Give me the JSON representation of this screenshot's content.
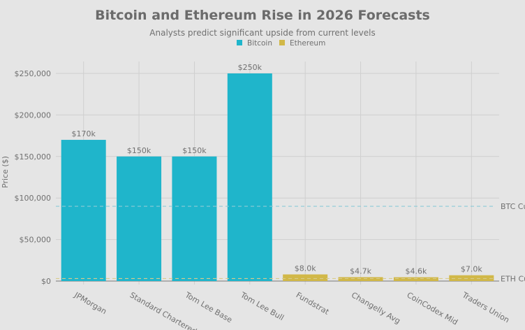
{
  "chart_data": {
    "type": "bar",
    "title": "Bitcoin and Ethereum Rise in 2026 Forecasts",
    "subtitle": "Analysts predict significant upside from current levels",
    "ylabel": "Price ($)",
    "xlabel": "",
    "ylim": [
      0,
      262000
    ],
    "yticks": [
      0,
      50000,
      100000,
      150000,
      200000,
      250000
    ],
    "ytick_labels": [
      "$0",
      "$50,000",
      "$100,000",
      "$150,000",
      "$200,000",
      "$250,000"
    ],
    "grid": true,
    "legend_position": "top-center",
    "categories": [
      "JPMorgan",
      "Standard Chartered",
      "Tom Lee Base",
      "Tom Lee Bull",
      "Fundstrat",
      "Changelly Avg",
      "CoinCodex Mid",
      "Traders Union"
    ],
    "series": [
      {
        "name": "Bitcoin",
        "color": "#1fb5cb",
        "values": [
          170000,
          150000,
          150000,
          250000,
          null,
          null,
          null,
          null
        ]
      },
      {
        "name": "Ethereum",
        "color": "#d1b848",
        "values": [
          null,
          null,
          null,
          null,
          8000,
          4700,
          4600,
          7000
        ]
      }
    ],
    "data_labels": [
      "$170k",
      "$150k",
      "$150k",
      "$250k",
      "$8.0k",
      "$4.7k",
      "$4.6k",
      "$7.0k"
    ],
    "reference_lines": [
      {
        "label": "BTC Cu",
        "value": 90000,
        "color": "#8ccbd6"
      },
      {
        "label": "ETH Cu",
        "value": 3000,
        "color": "#d8cc8c"
      }
    ]
  }
}
